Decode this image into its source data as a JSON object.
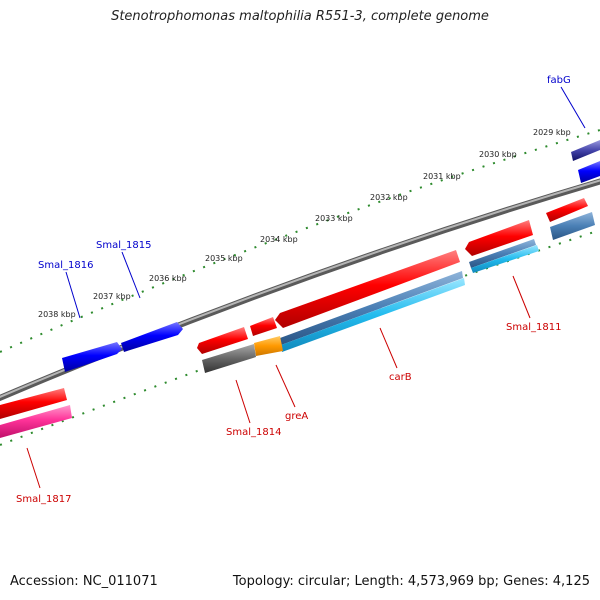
{
  "title": "Stenotrophomonas maltophilia R551-3, complete genome",
  "footer": {
    "accession": "Accession: NC_011071",
    "summary": "Topology: circular; Length: 4,573,969 bp; Genes: 4,125"
  },
  "colors": {
    "tick_green": "#2e8b2e",
    "backbone": "#8c8c8c",
    "gene_red": "#ff0000",
    "gene_blue": "#0000ff",
    "gene_magenta": "#ff3399",
    "gene_steel": "#4a7fb5",
    "gene_cyan": "#22bbee",
    "gene_gray": "#666666",
    "gene_orange": "#ff9900",
    "gene_navy": "#4444aa",
    "label_red": "#cc0000",
    "label_blue": "#0000cc"
  },
  "kbp_ticks": [
    {
      "label": "2029 kbp"
    },
    {
      "label": "2030 kbp"
    },
    {
      "label": "2031 kbp"
    },
    {
      "label": "2032 kbp"
    },
    {
      "label": "2033 kbp"
    },
    {
      "label": "2034 kbp"
    },
    {
      "label": "2035 kbp"
    },
    {
      "label": "2036 kbp"
    },
    {
      "label": "2037 kbp"
    },
    {
      "label": "2038 kbp"
    }
  ],
  "gene_labels": [
    {
      "name": "fabG",
      "color": "blue"
    },
    {
      "name": "Smal_1815",
      "color": "blue"
    },
    {
      "name": "Smal_1816",
      "color": "blue"
    },
    {
      "name": "Smal_1811",
      "color": "red"
    },
    {
      "name": "carB",
      "color": "red"
    },
    {
      "name": "greA",
      "color": "red"
    },
    {
      "name": "Smal_1814",
      "color": "red"
    },
    {
      "name": "Smal_1817",
      "color": "red"
    }
  ]
}
